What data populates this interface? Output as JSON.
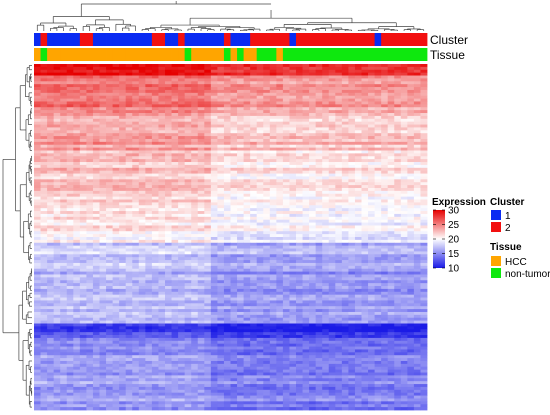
{
  "chart_data": {
    "type": "heatmap",
    "title": "",
    "n_samples": 60,
    "n_genes": 120,
    "annotation_tracks": [
      {
        "name": "Cluster",
        "values": [
          1,
          2,
          1,
          1,
          1,
          1,
          1,
          2,
          2,
          1,
          1,
          1,
          1,
          1,
          1,
          1,
          1,
          1,
          2,
          2,
          1,
          1,
          2,
          1,
          1,
          1,
          1,
          1,
          1,
          2,
          1,
          1,
          1,
          2,
          2,
          2,
          2,
          2,
          2,
          1,
          2,
          2,
          2,
          2,
          2,
          2,
          2,
          2,
          2,
          2,
          2,
          2,
          1,
          2,
          2,
          2,
          2,
          2,
          2,
          2
        ]
      },
      {
        "name": "Tissue",
        "values": [
          "HCC",
          "non-tumor",
          "HCC",
          "HCC",
          "HCC",
          "HCC",
          "HCC",
          "HCC",
          "HCC",
          "HCC",
          "HCC",
          "HCC",
          "HCC",
          "HCC",
          "HCC",
          "HCC",
          "HCC",
          "HCC",
          "HCC",
          "HCC",
          "HCC",
          "HCC",
          "HCC",
          "non-tumor",
          "HCC",
          "HCC",
          "HCC",
          "HCC",
          "HCC",
          "non-tumor",
          "HCC",
          "non-tumor",
          "HCC",
          "HCC",
          "non-tumor",
          "non-tumor",
          "non-tumor",
          "HCC",
          "non-tumor",
          "non-tumor",
          "non-tumor",
          "non-tumor",
          "non-tumor",
          "non-tumor",
          "non-tumor",
          "non-tumor",
          "non-tumor",
          "non-tumor",
          "non-tumor",
          "non-tumor",
          "non-tumor",
          "non-tumor",
          "non-tumor",
          "non-tumor",
          "non-tumor",
          "non-tumor",
          "non-tumor",
          "non-tumor",
          "non-tumor",
          "non-tumor"
        ]
      }
    ],
    "expression_profile": [
      {
        "row_from": 0,
        "row_to": 4,
        "value": 29
      },
      {
        "row_from": 4,
        "row_to": 15,
        "value": 25
      },
      {
        "row_from": 15,
        "row_to": 30,
        "value": 23
      },
      {
        "row_from": 30,
        "row_to": 50,
        "value": 21.5
      },
      {
        "row_from": 50,
        "row_to": 62,
        "value": 20
      },
      {
        "row_from": 62,
        "row_to": 72,
        "value": 17
      },
      {
        "row_from": 72,
        "row_to": 90,
        "value": 16
      },
      {
        "row_from": 90,
        "row_to": 95,
        "value": 11
      },
      {
        "row_from": 95,
        "row_to": 120,
        "value": 15
      }
    ],
    "expression_legend": {
      "title": "Expression",
      "min": 10,
      "max": 30,
      "ticks": [
        30,
        25,
        20,
        15,
        10
      ],
      "colors": {
        "low": "#1a1ae6",
        "mid": "#ffffff",
        "high": "#e60000"
      }
    },
    "cluster_legend": {
      "title": "Cluster",
      "items": [
        {
          "label": "1",
          "color": "#0a2bf2"
        },
        {
          "label": "2",
          "color": "#f21010"
        }
      ]
    },
    "tissue_legend": {
      "title": "Tissue",
      "items": [
        {
          "label": "HCC",
          "color": "#ffa500"
        },
        {
          "label": "non-tumor",
          "color": "#0ee80e"
        }
      ]
    },
    "column_dendrogram": true,
    "row_dendrogram": true
  }
}
